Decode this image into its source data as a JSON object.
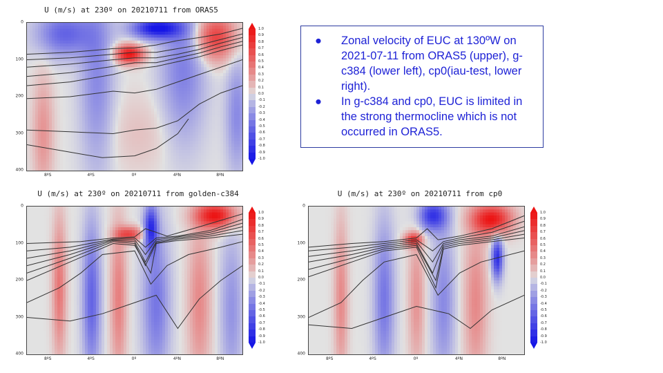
{
  "notes": {
    "items": [
      {
        "bullet": "●",
        "text": "Zonal velocity of EUC at 130ºW on 2021-07-11 from ORAS5 (upper), g-c384 (lower left), cp0(iau-test, lower right)."
      },
      {
        "bullet": "●",
        "text": "In g-c384 and cp0, EUC is limited in the strong thermocline which is not occurred in ORAS5."
      }
    ]
  },
  "chart_data": [
    {
      "type": "heatmap",
      "title": "U (m/s) at 230º on 20210711 from ORAS5",
      "xlabel": "",
      "ylabel": "",
      "x_ticks": [
        "8ºS",
        "4ºS",
        "0º",
        "4ºN",
        "8ºN"
      ],
      "y_ticks": [
        "0",
        "100",
        "200",
        "300",
        "400"
      ],
      "xlim": [
        -10,
        10
      ],
      "ylim": [
        0,
        400
      ],
      "colorbar": [
        "1.0",
        "0.9",
        "0.8",
        "0.7",
        "0.6",
        "0.5",
        "0.4",
        "0.3",
        "0.2",
        "0.1",
        "0.0",
        "-0.1",
        "-0.2",
        "-0.3",
        "-0.4",
        "-0.5",
        "-0.6",
        "-0.7",
        "-0.8",
        "-0.9",
        "-1.0"
      ],
      "blobs": [
        {
          "lat": -0.5,
          "depth": 85,
          "u": 1.0,
          "wlat": 1.3,
          "wdep": 25
        },
        {
          "lat": 2.0,
          "depth": 15,
          "u": -1.0,
          "wlat": 2.2,
          "wdep": 28
        },
        {
          "lat": 7.5,
          "depth": 40,
          "u": 0.75,
          "wlat": 1.8,
          "wdep": 60
        },
        {
          "lat": -6.5,
          "depth": 30,
          "u": -0.55,
          "wlat": 2.5,
          "wdep": 60
        },
        {
          "lat": -3.5,
          "depth": 150,
          "u": -0.35,
          "wlat": 1.5,
          "wdep": 250
        },
        {
          "lat": 4.5,
          "depth": 120,
          "u": -0.4,
          "wlat": 2.0,
          "wdep": 200
        },
        {
          "lat": -8.5,
          "depth": 300,
          "u": 0.3,
          "wlat": 0.9,
          "wdep": 150
        },
        {
          "lat": 9.5,
          "depth": 250,
          "u": -0.35,
          "wlat": 1.0,
          "wdep": 150
        },
        {
          "lat": 0.5,
          "depth": 300,
          "u": 0.1,
          "wlat": 3.0,
          "wdep": 100
        }
      ],
      "isotherms": [
        [
          [
            -10,
            85
          ],
          [
            -6,
            80
          ],
          [
            -2,
            70
          ],
          [
            0,
            68
          ],
          [
            2,
            60
          ],
          [
            4,
            48
          ],
          [
            6,
            40
          ],
          [
            8,
            30
          ],
          [
            10,
            15
          ]
        ],
        [
          [
            -10,
            100
          ],
          [
            -6,
            95
          ],
          [
            -2,
            85
          ],
          [
            0,
            80
          ],
          [
            2,
            80
          ],
          [
            4,
            70
          ],
          [
            6,
            60
          ],
          [
            8,
            45
          ],
          [
            10,
            30
          ]
        ],
        [
          [
            -10,
            120
          ],
          [
            -6,
            112
          ],
          [
            -2,
            100
          ],
          [
            0,
            95
          ],
          [
            2,
            95
          ],
          [
            4,
            85
          ],
          [
            6,
            72
          ],
          [
            8,
            55
          ],
          [
            10,
            40
          ]
        ],
        [
          [
            -10,
            145
          ],
          [
            -6,
            135
          ],
          [
            -2,
            118
          ],
          [
            0,
            108
          ],
          [
            2,
            108
          ],
          [
            4,
            95
          ],
          [
            6,
            82
          ],
          [
            8,
            65
          ],
          [
            10,
            50
          ]
        ],
        [
          [
            -10,
            170
          ],
          [
            -6,
            160
          ],
          [
            -2,
            140
          ],
          [
            0,
            125
          ],
          [
            2,
            118
          ],
          [
            4,
            105
          ],
          [
            6,
            92
          ],
          [
            8,
            75
          ],
          [
            10,
            60
          ]
        ],
        [
          [
            -10,
            205
          ],
          [
            -6,
            200
          ],
          [
            -2,
            185
          ],
          [
            0,
            190
          ],
          [
            2,
            180
          ],
          [
            4,
            160
          ],
          [
            6,
            140
          ],
          [
            8,
            120
          ],
          [
            10,
            100
          ]
        ],
        [
          [
            -10,
            290
          ],
          [
            -6,
            295
          ],
          [
            -2,
            300
          ],
          [
            0,
            290
          ],
          [
            2,
            285
          ],
          [
            4,
            265
          ],
          [
            6,
            220
          ],
          [
            8,
            190
          ],
          [
            10,
            170
          ]
        ],
        [
          [
            -10,
            330
          ],
          [
            -6,
            350
          ],
          [
            -3,
            365
          ],
          [
            0,
            360
          ],
          [
            2,
            340
          ],
          [
            4,
            300
          ],
          [
            5,
            260
          ]
        ]
      ]
    },
    {
      "type": "heatmap",
      "title": "U (m/s) at 230º on 20210711 from golden-c384",
      "xlabel": "",
      "ylabel": "",
      "x_ticks": [
        "8ºS",
        "4ºS",
        "0º",
        "4ºN",
        "8ºN"
      ],
      "y_ticks": [
        "0",
        "100",
        "200",
        "300",
        "400"
      ],
      "xlim": [
        -10,
        10
      ],
      "ylim": [
        0,
        400
      ],
      "colorbar": [
        "1.0",
        "0.9",
        "0.8",
        "0.7",
        "0.6",
        "0.5",
        "0.4",
        "0.3",
        "0.2",
        "0.1",
        "0.0",
        "-0.1",
        "-0.2",
        "-0.3",
        "-0.4",
        "-0.5",
        "-0.6",
        "-0.7",
        "-0.8",
        "-0.9",
        "-1.0"
      ],
      "blobs": [
        {
          "lat": 7.5,
          "depth": 25,
          "u": 1.0,
          "wlat": 1.8,
          "wdep": 35
        },
        {
          "lat": -0.5,
          "depth": 75,
          "u": 0.7,
          "wlat": 1.2,
          "wdep": 20
        },
        {
          "lat": 1.5,
          "depth": 60,
          "u": -0.8,
          "wlat": 0.6,
          "wdep": 60
        },
        {
          "lat": -7.0,
          "depth": 220,
          "u": 0.45,
          "wlat": 0.6,
          "wdep": 180
        },
        {
          "lat": -4.0,
          "depth": 250,
          "u": -0.55,
          "wlat": 0.8,
          "wdep": 200
        },
        {
          "lat": -1.5,
          "depth": 250,
          "u": 0.4,
          "wlat": 0.7,
          "wdep": 200
        },
        {
          "lat": 2.0,
          "depth": 260,
          "u": -0.45,
          "wlat": 1.2,
          "wdep": 200
        },
        {
          "lat": 6.0,
          "depth": 260,
          "u": 0.35,
          "wlat": 1.0,
          "wdep": 200
        },
        {
          "lat": 9.0,
          "depth": 280,
          "u": -0.3,
          "wlat": 1.0,
          "wdep": 200
        }
      ],
      "isotherms": [
        [
          [
            -10,
            100
          ],
          [
            -5,
            95
          ],
          [
            -2,
            85
          ],
          [
            0,
            82
          ],
          [
            1,
            60
          ],
          [
            2,
            70
          ],
          [
            3,
            80
          ],
          [
            6,
            55
          ],
          [
            10,
            20
          ]
        ],
        [
          [
            -10,
            120
          ],
          [
            -6,
            110
          ],
          [
            -2,
            88
          ],
          [
            0,
            85
          ],
          [
            1,
            110
          ],
          [
            2,
            85
          ],
          [
            4,
            80
          ],
          [
            7,
            65
          ],
          [
            10,
            35
          ]
        ],
        [
          [
            -10,
            140
          ],
          [
            -6,
            120
          ],
          [
            -2,
            90
          ],
          [
            0,
            90
          ],
          [
            1,
            130
          ],
          [
            2,
            90
          ],
          [
            4,
            82
          ],
          [
            7,
            70
          ],
          [
            10,
            45
          ]
        ],
        [
          [
            -10,
            160
          ],
          [
            -6,
            130
          ],
          [
            -2,
            92
          ],
          [
            0,
            95
          ],
          [
            1,
            150
          ],
          [
            2,
            95
          ],
          [
            4,
            85
          ],
          [
            7,
            75
          ],
          [
            10,
            55
          ]
        ],
        [
          [
            -10,
            180
          ],
          [
            -6,
            140
          ],
          [
            -2,
            95
          ],
          [
            0,
            100
          ],
          [
            1,
            160
          ],
          [
            2,
            98
          ],
          [
            4,
            88
          ],
          [
            7,
            80
          ],
          [
            10,
            65
          ]
        ],
        [
          [
            -10,
            200
          ],
          [
            -6,
            150
          ],
          [
            -2,
            100
          ],
          [
            0,
            105
          ],
          [
            1.5,
            180
          ],
          [
            2,
            100
          ],
          [
            4,
            92
          ],
          [
            7,
            85
          ],
          [
            10,
            75
          ]
        ],
        [
          [
            -10,
            260
          ],
          [
            -7,
            220
          ],
          [
            -5,
            180
          ],
          [
            -3,
            130
          ],
          [
            0,
            120
          ],
          [
            1.5,
            210
          ],
          [
            3,
            160
          ],
          [
            5,
            130
          ],
          [
            8,
            110
          ],
          [
            10,
            95
          ]
        ],
        [
          [
            -10,
            300
          ],
          [
            -6,
            310
          ],
          [
            -3,
            290
          ],
          [
            0,
            260
          ],
          [
            2,
            240
          ],
          [
            4,
            330
          ],
          [
            6,
            250
          ],
          [
            8,
            200
          ],
          [
            10,
            160
          ]
        ]
      ]
    },
    {
      "type": "heatmap",
      "title": "U (m/s) at 230º on 20210711 from cp0",
      "xlabel": "",
      "ylabel": "",
      "x_ticks": [
        "8ºS",
        "4ºS",
        "0º",
        "4ºN",
        "8ºN"
      ],
      "y_ticks": [
        "0",
        "100",
        "200",
        "300",
        "400"
      ],
      "xlim": [
        -10,
        10
      ],
      "ylim": [
        0,
        400
      ],
      "colorbar": [
        "1.0",
        "0.9",
        "0.8",
        "0.7",
        "0.6",
        "0.5",
        "0.4",
        "0.3",
        "0.2",
        "0.1",
        "0.0",
        "-0.1",
        "-0.2",
        "-0.3",
        "-0.4",
        "-0.5",
        "-0.6",
        "-0.7",
        "-0.8",
        "-0.9",
        "-1.0"
      ],
      "blobs": [
        {
          "lat": 7.0,
          "depth": 35,
          "u": 1.0,
          "wlat": 1.8,
          "wdep": 40
        },
        {
          "lat": -0.3,
          "depth": 90,
          "u": 0.75,
          "wlat": 0.8,
          "wdep": 18
        },
        {
          "lat": 1.5,
          "depth": 25,
          "u": -0.8,
          "wlat": 1.3,
          "wdep": 40
        },
        {
          "lat": 7.5,
          "depth": 140,
          "u": -0.85,
          "wlat": 0.5,
          "wdep": 55
        },
        {
          "lat": -7.0,
          "depth": 250,
          "u": 0.35,
          "wlat": 0.6,
          "wdep": 200
        },
        {
          "lat": -3.0,
          "depth": 250,
          "u": -0.45,
          "wlat": 0.9,
          "wdep": 200
        },
        {
          "lat": 0.0,
          "depth": 250,
          "u": 0.3,
          "wlat": 0.7,
          "wdep": 180
        },
        {
          "lat": 2.5,
          "depth": 260,
          "u": -0.35,
          "wlat": 1.0,
          "wdep": 200
        },
        {
          "lat": 5.5,
          "depth": 260,
          "u": 0.35,
          "wlat": 1.0,
          "wdep": 200
        }
      ],
      "isotherms": [
        [
          [
            -10,
            110
          ],
          [
            -6,
            100
          ],
          [
            -3,
            95
          ],
          [
            0,
            85
          ],
          [
            1,
            60
          ],
          [
            2,
            90
          ],
          [
            4,
            80
          ],
          [
            7,
            60
          ],
          [
            10,
            25
          ]
        ],
        [
          [
            -10,
            120
          ],
          [
            -6,
            110
          ],
          [
            -3,
            100
          ],
          [
            0,
            90
          ],
          [
            1.5,
            120
          ],
          [
            2.5,
            95
          ],
          [
            4,
            85
          ],
          [
            7,
            70
          ],
          [
            10,
            40
          ]
        ],
        [
          [
            -10,
            135
          ],
          [
            -6,
            120
          ],
          [
            -3,
            105
          ],
          [
            0,
            95
          ],
          [
            1.5,
            150
          ],
          [
            2.5,
            100
          ],
          [
            4,
            90
          ],
          [
            7,
            80
          ],
          [
            10,
            55
          ]
        ],
        [
          [
            -10,
            150
          ],
          [
            -6,
            130
          ],
          [
            -3,
            110
          ],
          [
            0,
            100
          ],
          [
            1.5,
            180
          ],
          [
            2.5,
            105
          ],
          [
            4,
            95
          ],
          [
            7,
            85
          ],
          [
            10,
            65
          ]
        ],
        [
          [
            -10,
            170
          ],
          [
            -6,
            140
          ],
          [
            -3,
            115
          ],
          [
            0,
            105
          ],
          [
            1.8,
            200
          ],
          [
            2.5,
            110
          ],
          [
            4,
            100
          ],
          [
            7,
            90
          ],
          [
            10,
            75
          ]
        ],
        [
          [
            -10,
            190
          ],
          [
            -6,
            150
          ],
          [
            -3,
            120
          ],
          [
            0,
            110
          ],
          [
            1.8,
            220
          ],
          [
            2.5,
            115
          ],
          [
            4,
            105
          ],
          [
            7,
            95
          ],
          [
            10,
            85
          ]
        ],
        [
          [
            -10,
            300
          ],
          [
            -7,
            260
          ],
          [
            -5,
            200
          ],
          [
            -3,
            150
          ],
          [
            0,
            130
          ],
          [
            2,
            240
          ],
          [
            4,
            180
          ],
          [
            6,
            150
          ],
          [
            10,
            120
          ]
        ],
        [
          [
            -10,
            320
          ],
          [
            -6,
            330
          ],
          [
            -3,
            300
          ],
          [
            0,
            270
          ],
          [
            3,
            290
          ],
          [
            5,
            330
          ],
          [
            7,
            280
          ],
          [
            10,
            240
          ]
        ]
      ]
    }
  ]
}
